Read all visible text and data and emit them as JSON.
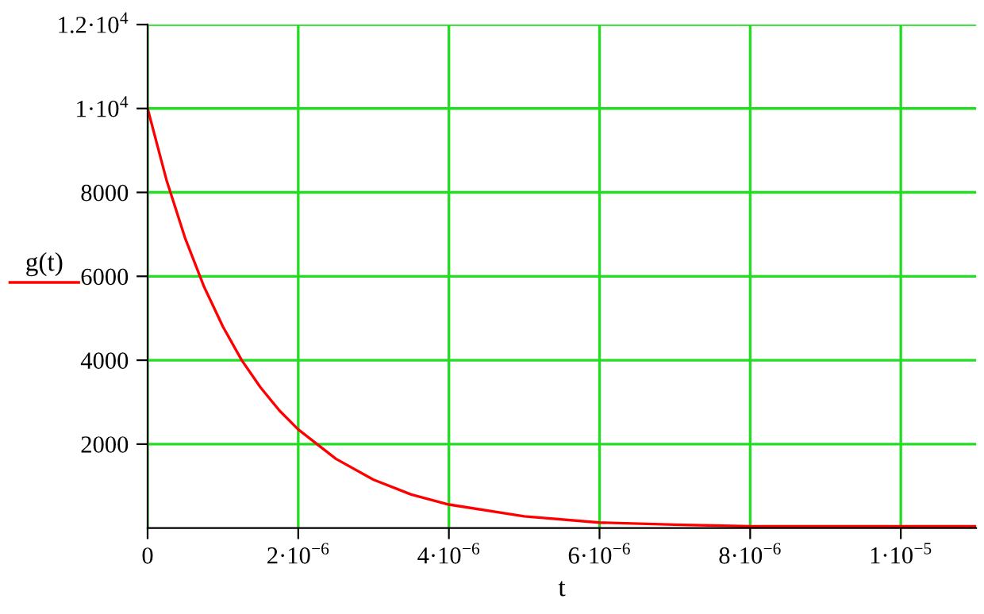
{
  "chart_data": {
    "type": "line",
    "xlabel": "t",
    "legend": "left",
    "series": [
      {
        "name": "g(t)",
        "color": "#ff0000",
        "x": [
          0,
          2.5e-07,
          5e-07,
          7.5e-07,
          1e-06,
          1.25e-06,
          1.5e-06,
          1.75e-06,
          2e-06,
          2.5e-06,
          3e-06,
          3.5e-06,
          4e-06,
          5e-06,
          6e-06,
          7e-06,
          8e-06,
          9e-06,
          1e-05,
          1.1e-05
        ],
        "values": [
          10000,
          8300,
          6900,
          5750,
          4800,
          4000,
          3350,
          2800,
          2350,
          1650,
          1150,
          800,
          560,
          280,
          130,
          80,
          40,
          40,
          40,
          40
        ]
      }
    ],
    "xlim": [
      0,
      1.1e-05
    ],
    "ylim": [
      0,
      12000
    ],
    "xticks": [
      0,
      {
        "value": 2e-06,
        "label": "2·10$^{−6}$"
      },
      {
        "value": 4e-06,
        "label": "4·10$^{−6}$"
      },
      {
        "value": 6e-06,
        "label": "6·10$^{−6}$"
      },
      {
        "value": 8e-06,
        "label": "8·10$^{−6}$"
      },
      {
        "value": 1e-05,
        "label": "1·10$^{−5}$"
      }
    ],
    "yticks": [
      2000,
      4000,
      6000,
      8000,
      {
        "value": 10000,
        "label": "1·10$^{4}$"
      },
      {
        "value": 12000,
        "label": "1.2·10$^{4}$"
      }
    ],
    "grid": true
  }
}
